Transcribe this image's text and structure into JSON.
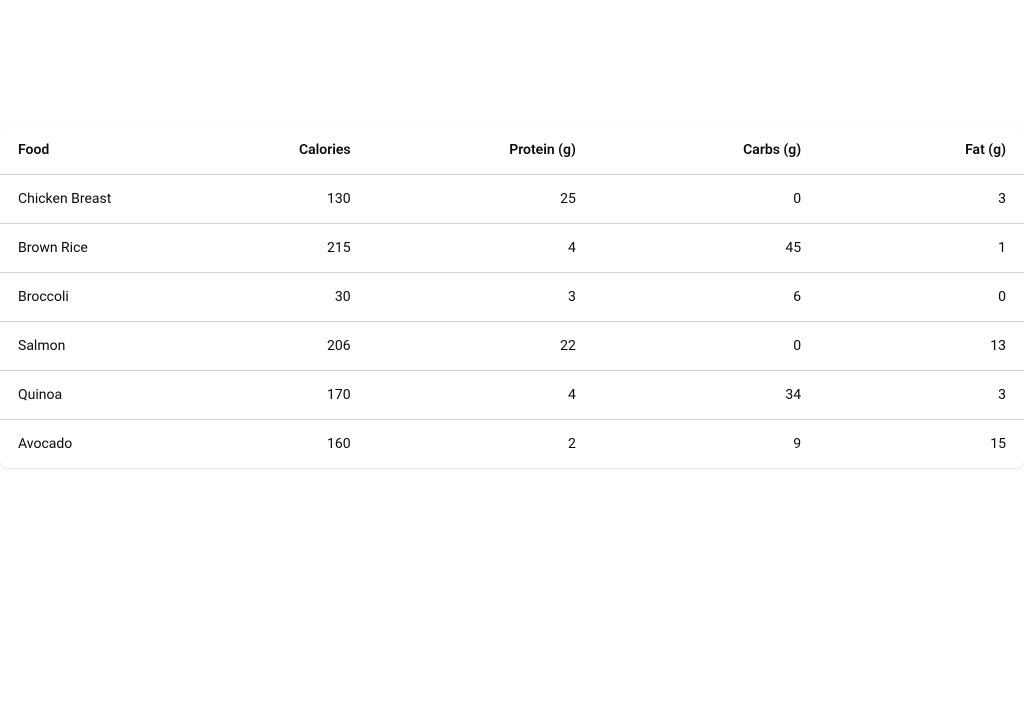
{
  "table": {
    "type": "table",
    "background_color": "#ffffff",
    "border_color": "#d4d4d4",
    "header_fontsize": 14,
    "header_fontweight": 600,
    "cell_fontsize": 14,
    "cell_fontweight": 400,
    "text_color": "#0a0a0a",
    "columns": [
      {
        "key": "food",
        "label": "Food",
        "align": "left",
        "width_pct": 22
      },
      {
        "key": "calories",
        "label": "Calories",
        "align": "right",
        "width_pct": 14
      },
      {
        "key": "protein",
        "label": "Protein (g)",
        "align": "right",
        "width_pct": 22
      },
      {
        "key": "carbs",
        "label": "Carbs (g)",
        "align": "right",
        "width_pct": 22
      },
      {
        "key": "fat",
        "label": "Fat (g)",
        "align": "right",
        "width_pct": 20
      }
    ],
    "rows": [
      {
        "food": "Chicken Breast",
        "calories": 130,
        "protein": 25,
        "carbs": 0,
        "fat": 3
      },
      {
        "food": "Brown Rice",
        "calories": 215,
        "protein": 4,
        "carbs": 45,
        "fat": 1
      },
      {
        "food": "Broccoli",
        "calories": 30,
        "protein": 3,
        "carbs": 6,
        "fat": 0
      },
      {
        "food": "Salmon",
        "calories": 206,
        "protein": 22,
        "carbs": 0,
        "fat": 13
      },
      {
        "food": "Quinoa",
        "calories": 170,
        "protein": 4,
        "carbs": 34,
        "fat": 3
      },
      {
        "food": "Avocado",
        "calories": 160,
        "protein": 2,
        "carbs": 9,
        "fat": 15
      }
    ]
  }
}
